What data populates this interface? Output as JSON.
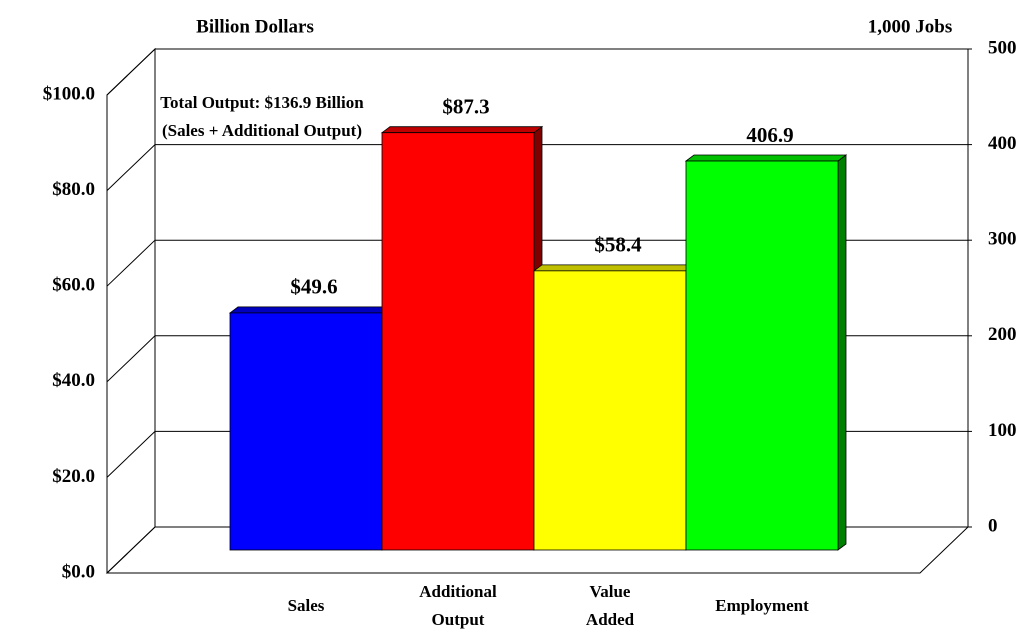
{
  "chart_data": {
    "type": "bar3d",
    "y_axis_title": "Billion Dollars",
    "y2_axis_title": "1,000 Jobs",
    "annotation": "Total Output: $136.9 Billion (Sales + Additional Output)",
    "categories": [
      "Sales",
      "Additional Output",
      "Value Added",
      "Employment"
    ],
    "colors": [
      "#0000ff",
      "#ff0000",
      "#ffff00",
      "#00ff00"
    ],
    "series": [
      {
        "axis": "y",
        "values": [
          49.6,
          87.3,
          58.4,
          null
        ],
        "value_labels": [
          "$49.6",
          "$87.3",
          "$58.4",
          null
        ]
      },
      {
        "axis": "y2",
        "values": [
          null,
          null,
          null,
          406.9
        ]
      }
    ],
    "ylim": [
      0,
      100
    ],
    "yticks": [
      {
        "value": 0,
        "label": "$0.0"
      },
      {
        "value": 20,
        "label": "$20.0"
      },
      {
        "value": 40,
        "label": "$40.0"
      },
      {
        "value": 60,
        "label": "$60.0"
      },
      {
        "value": 80,
        "label": "$80.0"
      },
      {
        "value": 100,
        "label": "$100.0"
      }
    ],
    "y2lim": [
      0,
      500
    ],
    "y2ticks": [
      0,
      100,
      200,
      300,
      400,
      500
    ],
    "grid": true
  }
}
